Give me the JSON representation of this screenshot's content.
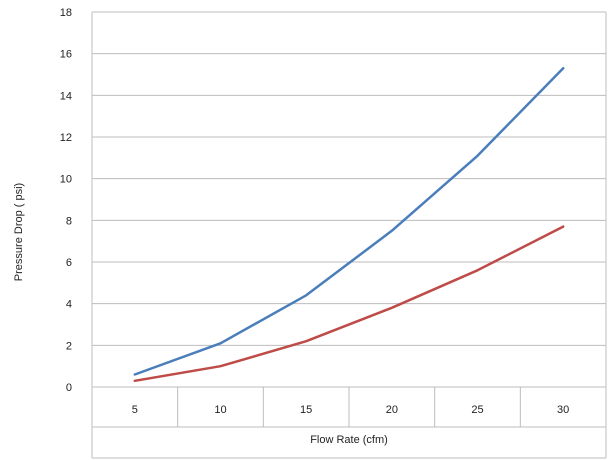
{
  "chart_data": {
    "type": "line",
    "title": "",
    "xlabel": "Flow Rate (cfm)",
    "ylabel": "Pressure Drop ( psi)",
    "categories": [
      "5",
      "10",
      "15",
      "20",
      "25",
      "30"
    ],
    "series": [
      {
        "color": "#4a7ebb",
        "values": [
          0.6,
          2.1,
          4.4,
          7.5,
          11.1,
          15.3
        ]
      },
      {
        "color": "#be4b48",
        "values": [
          0.3,
          1.0,
          2.2,
          3.8,
          5.6,
          7.7
        ]
      }
    ],
    "ylim": [
      0,
      18
    ],
    "yticks": [
      0,
      2,
      4,
      6,
      8,
      10,
      12,
      14,
      16,
      18
    ],
    "grid": true,
    "legend": "none"
  }
}
